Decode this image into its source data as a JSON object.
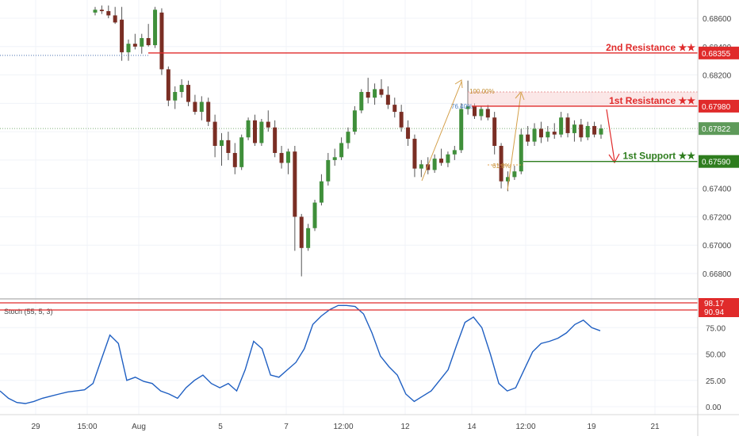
{
  "chart_data": [
    {
      "type": "candlestick",
      "title": "",
      "ylim": [
        0.666,
        0.6875
      ],
      "y_ticks": [
        "0.68600",
        "0.68400",
        "0.68200",
        "0.68000",
        "0.67800",
        "0.67600",
        "0.67400",
        "0.67200",
        "0.67000",
        "0.66800"
      ],
      "x_ticks": [
        "29",
        "15:00",
        "Aug",
        "5",
        "7",
        "12:00",
        "12",
        "14",
        "12:00",
        "19",
        "21"
      ],
      "current_price": 0.67822,
      "levels": [
        {
          "name": "2nd Resistance ★★",
          "value": 0.68355,
          "badge": "0.68355",
          "color": "#e02b2b"
        },
        {
          "name": "1st Resistance ★★",
          "value": 0.6798,
          "badge": "0.67980",
          "color": "#e02b2b"
        },
        {
          "name": "1st Support ★★",
          "value": 0.6759,
          "badge": "0.67590",
          "color": "#2e7d1e"
        }
      ],
      "fib_labels": [
        "100.00%",
        "76.40%",
        "61.8%"
      ],
      "candles": [
        {
          "o": 0.6864,
          "h": 0.6868,
          "l": 0.6862,
          "c": 0.6866
        },
        {
          "o": 0.6866,
          "h": 0.6869,
          "l": 0.6863,
          "c": 0.6865
        },
        {
          "o": 0.6865,
          "h": 0.6869,
          "l": 0.686,
          "c": 0.6862
        },
        {
          "o": 0.6862,
          "h": 0.6868,
          "l": 0.6856,
          "c": 0.6857
        },
        {
          "o": 0.6859,
          "h": 0.6868,
          "l": 0.683,
          "c": 0.6836
        },
        {
          "o": 0.6836,
          "h": 0.6845,
          "l": 0.683,
          "c": 0.6842
        },
        {
          "o": 0.6842,
          "h": 0.6849,
          "l": 0.6838,
          "c": 0.684
        },
        {
          "o": 0.684,
          "h": 0.6849,
          "l": 0.6835,
          "c": 0.6846
        },
        {
          "o": 0.6846,
          "h": 0.6856,
          "l": 0.684,
          "c": 0.6841
        },
        {
          "o": 0.6841,
          "h": 0.6868,
          "l": 0.6839,
          "c": 0.6866
        },
        {
          "o": 0.6864,
          "h": 0.6867,
          "l": 0.682,
          "c": 0.6824
        },
        {
          "o": 0.6824,
          "h": 0.6826,
          "l": 0.6798,
          "c": 0.6802
        },
        {
          "o": 0.6802,
          "h": 0.6812,
          "l": 0.6796,
          "c": 0.6808
        },
        {
          "o": 0.6808,
          "h": 0.6817,
          "l": 0.6804,
          "c": 0.6813
        },
        {
          "o": 0.6813,
          "h": 0.6816,
          "l": 0.6798,
          "c": 0.6801
        },
        {
          "o": 0.6801,
          "h": 0.6806,
          "l": 0.6792,
          "c": 0.6794
        },
        {
          "o": 0.6794,
          "h": 0.6805,
          "l": 0.6788,
          "c": 0.6801
        },
        {
          "o": 0.6801,
          "h": 0.6804,
          "l": 0.6784,
          "c": 0.6787
        },
        {
          "o": 0.6787,
          "h": 0.6792,
          "l": 0.6762,
          "c": 0.677
        },
        {
          "o": 0.677,
          "h": 0.6779,
          "l": 0.6756,
          "c": 0.6774
        },
        {
          "o": 0.6774,
          "h": 0.678,
          "l": 0.676,
          "c": 0.6765
        },
        {
          "o": 0.6765,
          "h": 0.6772,
          "l": 0.675,
          "c": 0.6755
        },
        {
          "o": 0.6755,
          "h": 0.6778,
          "l": 0.6753,
          "c": 0.6776
        },
        {
          "o": 0.6776,
          "h": 0.679,
          "l": 0.6774,
          "c": 0.6788
        },
        {
          "o": 0.6788,
          "h": 0.6792,
          "l": 0.677,
          "c": 0.6772
        },
        {
          "o": 0.6772,
          "h": 0.6789,
          "l": 0.677,
          "c": 0.6787
        },
        {
          "o": 0.6787,
          "h": 0.6795,
          "l": 0.678,
          "c": 0.6783
        },
        {
          "o": 0.6783,
          "h": 0.6788,
          "l": 0.6762,
          "c": 0.6765
        },
        {
          "o": 0.6765,
          "h": 0.677,
          "l": 0.6754,
          "c": 0.6758
        },
        {
          "o": 0.6758,
          "h": 0.6768,
          "l": 0.675,
          "c": 0.6766
        },
        {
          "o": 0.6766,
          "h": 0.677,
          "l": 0.6696,
          "c": 0.672
        },
        {
          "o": 0.672,
          "h": 0.6722,
          "l": 0.6678,
          "c": 0.6698
        },
        {
          "o": 0.6698,
          "h": 0.6715,
          "l": 0.6696,
          "c": 0.6712
        },
        {
          "o": 0.6712,
          "h": 0.6732,
          "l": 0.671,
          "c": 0.673
        },
        {
          "o": 0.673,
          "h": 0.675,
          "l": 0.6728,
          "c": 0.6745
        },
        {
          "o": 0.6745,
          "h": 0.6765,
          "l": 0.6742,
          "c": 0.676
        },
        {
          "o": 0.676,
          "h": 0.6768,
          "l": 0.6756,
          "c": 0.6762
        },
        {
          "o": 0.6762,
          "h": 0.6776,
          "l": 0.676,
          "c": 0.6772
        },
        {
          "o": 0.6772,
          "h": 0.6783,
          "l": 0.6768,
          "c": 0.678
        },
        {
          "o": 0.678,
          "h": 0.6798,
          "l": 0.6778,
          "c": 0.6795
        },
        {
          "o": 0.6795,
          "h": 0.681,
          "l": 0.6793,
          "c": 0.6808
        },
        {
          "o": 0.6808,
          "h": 0.6818,
          "l": 0.68,
          "c": 0.6804
        },
        {
          "o": 0.6804,
          "h": 0.6814,
          "l": 0.6799,
          "c": 0.681
        },
        {
          "o": 0.681,
          "h": 0.6817,
          "l": 0.6804,
          "c": 0.6806
        },
        {
          "o": 0.6806,
          "h": 0.6812,
          "l": 0.6796,
          "c": 0.6799
        },
        {
          "o": 0.6799,
          "h": 0.6804,
          "l": 0.679,
          "c": 0.6794
        },
        {
          "o": 0.6794,
          "h": 0.6799,
          "l": 0.678,
          "c": 0.6783
        },
        {
          "o": 0.6783,
          "h": 0.6788,
          "l": 0.677,
          "c": 0.6775
        },
        {
          "o": 0.6775,
          "h": 0.6778,
          "l": 0.6748,
          "c": 0.6754
        },
        {
          "o": 0.6754,
          "h": 0.676,
          "l": 0.6748,
          "c": 0.6757
        },
        {
          "o": 0.6757,
          "h": 0.6762,
          "l": 0.675,
          "c": 0.6753
        },
        {
          "o": 0.6753,
          "h": 0.6764,
          "l": 0.6751,
          "c": 0.6761
        },
        {
          "o": 0.6761,
          "h": 0.6768,
          "l": 0.6756,
          "c": 0.6758
        },
        {
          "o": 0.6758,
          "h": 0.6766,
          "l": 0.6755,
          "c": 0.6764
        },
        {
          "o": 0.6764,
          "h": 0.677,
          "l": 0.676,
          "c": 0.6767
        },
        {
          "o": 0.6767,
          "h": 0.68,
          "l": 0.6765,
          "c": 0.6796
        },
        {
          "o": 0.6796,
          "h": 0.6816,
          "l": 0.6792,
          "c": 0.6798
        },
        {
          "o": 0.6798,
          "h": 0.68,
          "l": 0.6789,
          "c": 0.6791
        },
        {
          "o": 0.6791,
          "h": 0.6798,
          "l": 0.6788,
          "c": 0.6796
        },
        {
          "o": 0.6796,
          "h": 0.6799,
          "l": 0.6788,
          "c": 0.679
        },
        {
          "o": 0.679,
          "h": 0.6794,
          "l": 0.6764,
          "c": 0.677
        },
        {
          "o": 0.677,
          "h": 0.6772,
          "l": 0.674,
          "c": 0.6745
        },
        {
          "o": 0.6745,
          "h": 0.6752,
          "l": 0.6738,
          "c": 0.6748
        },
        {
          "o": 0.6748,
          "h": 0.6756,
          "l": 0.6746,
          "c": 0.6752
        },
        {
          "o": 0.6752,
          "h": 0.6782,
          "l": 0.675,
          "c": 0.6778
        },
        {
          "o": 0.6778,
          "h": 0.6784,
          "l": 0.677,
          "c": 0.6773
        },
        {
          "o": 0.6773,
          "h": 0.6786,
          "l": 0.677,
          "c": 0.6782
        },
        {
          "o": 0.6782,
          "h": 0.6787,
          "l": 0.6772,
          "c": 0.6776
        },
        {
          "o": 0.6776,
          "h": 0.6784,
          "l": 0.6773,
          "c": 0.678
        },
        {
          "o": 0.678,
          "h": 0.6786,
          "l": 0.6775,
          "c": 0.6778
        },
        {
          "o": 0.6778,
          "h": 0.6794,
          "l": 0.6776,
          "c": 0.679
        },
        {
          "o": 0.679,
          "h": 0.6793,
          "l": 0.6776,
          "c": 0.6779
        },
        {
          "o": 0.6779,
          "h": 0.6788,
          "l": 0.6773,
          "c": 0.6785
        },
        {
          "o": 0.6785,
          "h": 0.6789,
          "l": 0.6773,
          "c": 0.6776
        },
        {
          "o": 0.6776,
          "h": 0.6787,
          "l": 0.6774,
          "c": 0.6784
        },
        {
          "o": 0.6784,
          "h": 0.6787,
          "l": 0.6776,
          "c": 0.6778
        },
        {
          "o": 0.6778,
          "h": 0.6785,
          "l": 0.6775,
          "c": 0.67822
        }
      ]
    },
    {
      "type": "line",
      "title": "Stoch (55, 5, 3)",
      "ylim": [
        -5,
        110
      ],
      "y_ticks": [
        "75.00",
        "50.00",
        "25.00",
        "0.00"
      ],
      "badges": [
        {
          "value": 98.17,
          "label": "98.17"
        },
        {
          "value": 90.94,
          "label": "90.94"
        }
      ],
      "line_color": "#1f5fc2",
      "series": [
        {
          "values": [
            15,
            8,
            4,
            3,
            5,
            8,
            10,
            12,
            14,
            15,
            16,
            22,
            45,
            68,
            60,
            25,
            28,
            24,
            22,
            15,
            12,
            8,
            18,
            25,
            30,
            22,
            18,
            22,
            15,
            35,
            62,
            55,
            30,
            28,
            35,
            42,
            55,
            78,
            86,
            92,
            96,
            96,
            95,
            88,
            70,
            48,
            38,
            30,
            12,
            5,
            10,
            15,
            25,
            35,
            58,
            80,
            85,
            75,
            50,
            22,
            15,
            18,
            35,
            52,
            60,
            62,
            65,
            70,
            78,
            82,
            75,
            72
          ]
        }
      ]
    }
  ]
}
